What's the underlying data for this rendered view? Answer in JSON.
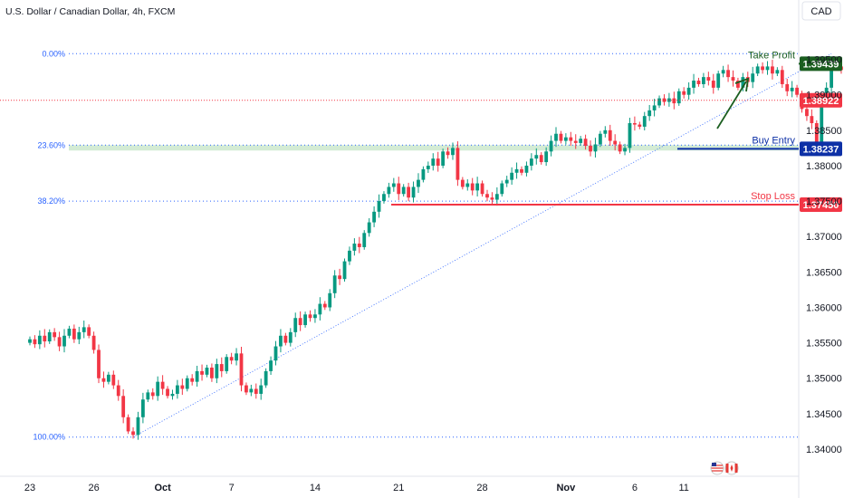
{
  "header": {
    "title": "U.S. Dollar / Canadian Dollar, 4h, FXCM",
    "currency_button": "CAD"
  },
  "chart_data": {
    "type": "candlestick",
    "symbol": "U.S. Dollar / Canadian Dollar",
    "timeframe": "4h",
    "source": "FXCM",
    "y_axis": {
      "min": 1.337,
      "max": 1.404,
      "ticks": [
        1.34,
        1.345,
        1.35,
        1.355,
        1.36,
        1.365,
        1.37,
        1.375,
        1.38,
        1.385,
        1.39,
        1.395
      ]
    },
    "x_axis": {
      "labels": [
        "23",
        "26",
        "Oct",
        "7",
        "14",
        "21",
        "28",
        "Nov",
        "6",
        "11"
      ],
      "bar_index": [
        0,
        13,
        27,
        41,
        58,
        75,
        92,
        109,
        123,
        133
      ]
    },
    "fib_levels": [
      {
        "label": "0.00%",
        "price": 1.3958
      },
      {
        "label": "23.60%",
        "price": 1.3829
      },
      {
        "label": "38.20%",
        "price": 1.375
      },
      {
        "label": "100.00%",
        "price": 1.3417
      }
    ],
    "levels": [
      {
        "name": "Take Profit",
        "price": 1.39439,
        "tag": "1.39439",
        "color": "#1b5e20"
      },
      {
        "name": "Buy Entry",
        "price": 1.38237,
        "tag": "1.38237",
        "color": "#0d30a6"
      },
      {
        "name": "Stop Loss",
        "price": 1.3745,
        "tag": "1.37450",
        "color": "#f23645"
      }
    ],
    "current_price": {
      "price": 1.38922,
      "tag": "1.38922",
      "color": "#f23645"
    },
    "up_color": "#089981",
    "down_color": "#f23645",
    "closes": [
      1.3555,
      1.3548,
      1.356,
      1.3552,
      1.3565,
      1.3558,
      1.3545,
      1.356,
      1.357,
      1.3555,
      1.3565,
      1.3572,
      1.356,
      1.354,
      1.35,
      1.3495,
      1.3505,
      1.349,
      1.3475,
      1.3445,
      1.3425,
      1.342,
      1.3445,
      1.347,
      1.348,
      1.3475,
      1.3495,
      1.3485,
      1.3475,
      1.3478,
      1.349,
      1.3485,
      1.35,
      1.3495,
      1.351,
      1.3505,
      1.3515,
      1.35,
      1.352,
      1.351,
      1.353,
      1.3525,
      1.3535,
      1.349,
      1.348,
      1.3485,
      1.3478,
      1.349,
      1.351,
      1.3525,
      1.3545,
      1.356,
      1.355,
      1.3565,
      1.3585,
      1.3575,
      1.359,
      1.3585,
      1.359,
      1.3605,
      1.36,
      1.362,
      1.3645,
      1.364,
      1.3665,
      1.368,
      1.369,
      1.3685,
      1.3705,
      1.372,
      1.3735,
      1.375,
      1.376,
      1.377,
      1.3775,
      1.376,
      1.377,
      1.3755,
      1.377,
      1.378,
      1.3795,
      1.38,
      1.381,
      1.38,
      1.382,
      1.3815,
      1.3825,
      1.378,
      1.377,
      1.3775,
      1.3765,
      1.3775,
      1.376,
      1.3755,
      1.3752,
      1.376,
      1.3775,
      1.378,
      1.379,
      1.3795,
      1.379,
      1.38,
      1.381,
      1.3815,
      1.3805,
      1.382,
      1.3835,
      1.3845,
      1.3835,
      1.384,
      1.3835,
      1.3832,
      1.3838,
      1.3828,
      1.382,
      1.383,
      1.3845,
      1.385,
      1.3835,
      1.383,
      1.382,
      1.3825,
      1.386,
      1.3858,
      1.3855,
      1.387,
      1.3878,
      1.3885,
      1.3895,
      1.389,
      1.3895,
      1.3888,
      1.3905,
      1.39,
      1.391,
      1.392,
      1.3915,
      1.3925,
      1.392,
      1.391,
      1.393,
      1.3935,
      1.3925,
      1.392,
      1.391,
      1.3925,
      1.3918,
      1.393,
      1.394,
      1.3935,
      1.394,
      1.393,
      1.3935,
      1.3915,
      1.3905,
      1.391,
      1.39,
      1.388,
      1.387,
      1.386,
      1.3825,
      1.389,
      1.391,
      1.3945,
      1.394,
      1.3935,
      1.3925,
      1.38922
    ]
  }
}
